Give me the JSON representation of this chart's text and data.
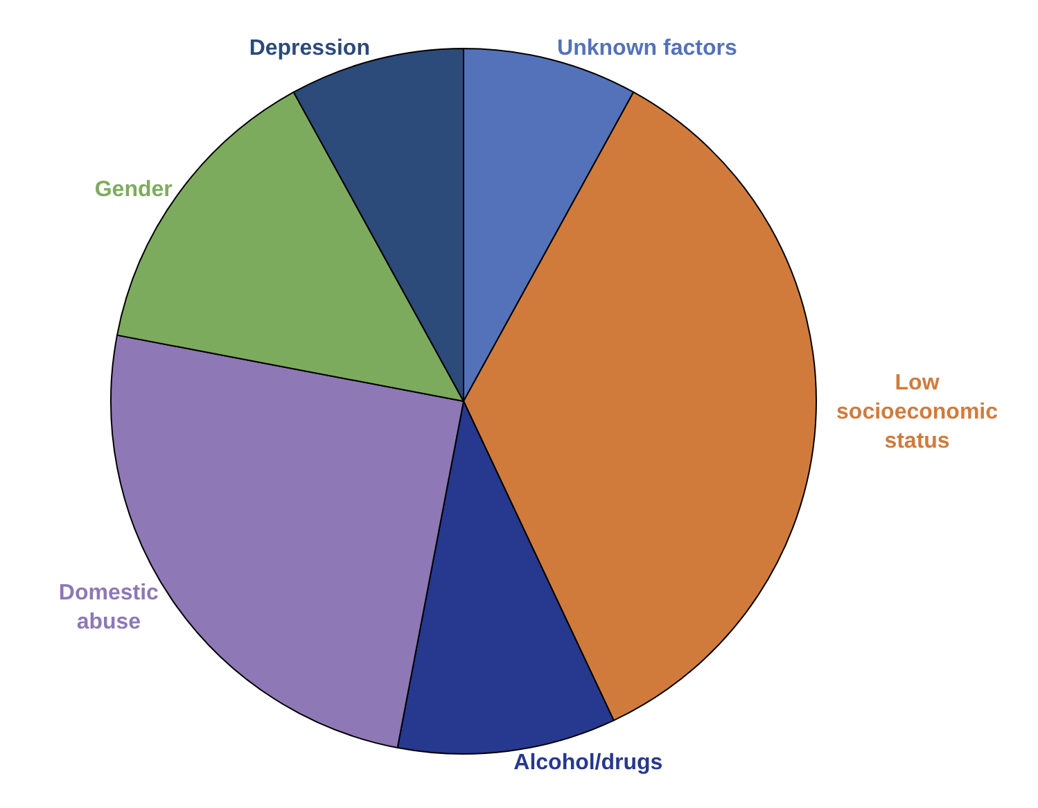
{
  "chart_data": {
    "type": "pie",
    "categories": [
      "Unknown factors",
      "Low socioeconomic status",
      "Alcohol/drugs",
      "Domestic abuse",
      "Gender",
      "Depression"
    ],
    "values": [
      8,
      35,
      10,
      25,
      14,
      8
    ],
    "colors": [
      "#5472b9",
      "#d07b3c",
      "#27388f",
      "#8e78b5",
      "#7dab5d",
      "#2c4a7a"
    ],
    "legend": false
  }
}
